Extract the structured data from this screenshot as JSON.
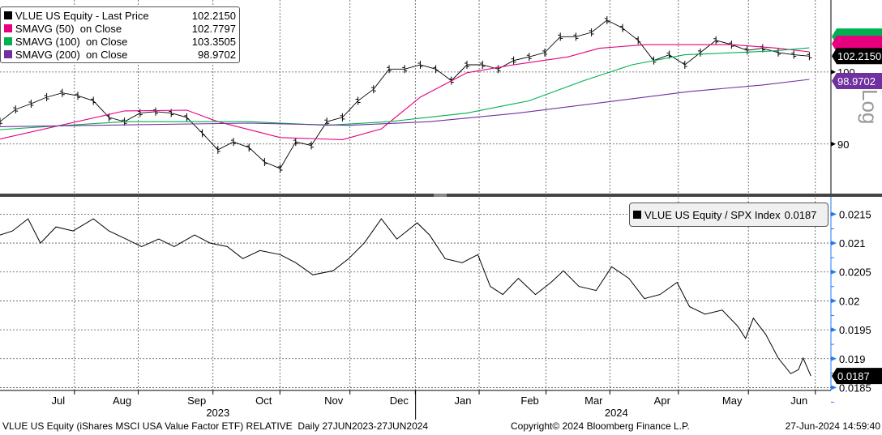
{
  "legend_top": [
    {
      "name": "VLUE US Equity - Last Price",
      "value": "102.2150",
      "color": "#000000"
    },
    {
      "name": "SMAVG (50)  on Close",
      "value": "102.7797",
      "color": "#e6007e"
    },
    {
      "name": "SMAVG (100)  on Close",
      "value": "103.3505",
      "color": "#00b050"
    },
    {
      "name": "SMAVG (200)  on Close",
      "value": "98.9702",
      "color": "#7030a0"
    }
  ],
  "legend_bottom": {
    "name": "VLUE US Equity / SPX Index",
    "value": "0.0187"
  },
  "tags": {
    "price": "102.2150",
    "sma200": "98.9702",
    "ratio": "0.0187",
    "log": "Log"
  },
  "footer": {
    "left": "VLUE US Equity (iShares MSCI USA Value Factor ETF) RELATIVE  Daily 27JUN2023-27JUN2024",
    "center": "Copyright© 2024 Bloomberg Finance L.P.",
    "right": "27-Jun-2024 14:59:40"
  },
  "chart_data": [
    {
      "type": "line",
      "title": "VLUE US Equity - Last Price",
      "ylim": [
        83,
        110
      ],
      "y_ticks": [
        "90",
        "100"
      ],
      "y_tick_values": [
        90,
        100
      ],
      "x_unit": "weeks since 27JUN2023",
      "series": [
        {
          "name": "VLUE US Equity - Last Price",
          "color": "#000000",
          "points": [
            [
              0,
              93.1
            ],
            [
              1,
              94.8
            ],
            [
              2,
              95.6
            ],
            [
              3,
              96.5
            ],
            [
              4,
              97.1
            ],
            [
              5,
              96.7
            ],
            [
              6,
              96.0
            ],
            [
              7,
              93.7
            ],
            [
              8,
              93.1
            ],
            [
              9,
              94.3
            ],
            [
              10,
              94.5
            ],
            [
              11,
              94.3
            ],
            [
              12,
              93.7
            ],
            [
              13,
              91.5
            ],
            [
              14,
              89.2
            ],
            [
              15,
              90.3
            ],
            [
              16,
              89.5
            ],
            [
              17,
              87.5
            ],
            [
              18,
              86.6
            ],
            [
              19,
              90.3
            ],
            [
              20,
              89.8
            ],
            [
              21,
              93.1
            ],
            [
              22,
              93.7
            ],
            [
              23,
              96.0
            ],
            [
              24,
              97.6
            ],
            [
              25,
              100.4
            ],
            [
              26,
              100.4
            ],
            [
              27,
              101.0
            ],
            [
              28,
              100.4
            ],
            [
              29,
              98.8
            ],
            [
              30,
              101.0
            ],
            [
              31,
              101.0
            ],
            [
              32,
              100.4
            ],
            [
              33,
              101.6
            ],
            [
              34,
              102.1
            ],
            [
              35,
              102.7
            ],
            [
              36,
              104.9
            ],
            [
              37,
              104.9
            ],
            [
              38,
              105.5
            ],
            [
              39,
              107.2
            ],
            [
              40,
              106.1
            ],
            [
              41,
              104.4
            ],
            [
              42,
              101.6
            ],
            [
              43,
              102.4
            ],
            [
              44,
              101.0
            ],
            [
              45,
              102.7
            ],
            [
              46,
              104.4
            ],
            [
              47,
              103.8
            ],
            [
              48,
              103.0
            ],
            [
              49,
              103.3
            ],
            [
              50,
              102.7
            ],
            [
              51,
              102.4
            ],
            [
              52,
              102.2
            ]
          ]
        },
        {
          "name": "SMAVG (50)",
          "color": "#e6007e",
          "points": [
            [
              0,
              90.7
            ],
            [
              8,
              94.6
            ],
            [
              12,
              94.7
            ],
            [
              14,
              93.1
            ],
            [
              18,
              90.9
            ],
            [
              22,
              90.6
            ],
            [
              24.5,
              92.1
            ],
            [
              27,
              96.5
            ],
            [
              30,
              99.9
            ],
            [
              33,
              101.0
            ],
            [
              36.5,
              102.1
            ],
            [
              38.5,
              103.3
            ],
            [
              41.5,
              103.8
            ],
            [
              47,
              103.8
            ],
            [
              50,
              103.3
            ],
            [
              52,
              102.8
            ]
          ]
        },
        {
          "name": "SMAVG (100)",
          "color": "#00b050",
          "points": [
            [
              0,
              92.0
            ],
            [
              8,
              93.1
            ],
            [
              16,
              93.1
            ],
            [
              21,
              92.6
            ],
            [
              25,
              93.1
            ],
            [
              30,
              94.3
            ],
            [
              34,
              96.0
            ],
            [
              37.5,
              98.8
            ],
            [
              40.6,
              101.0
            ],
            [
              44,
              102.4
            ],
            [
              49.5,
              102.9
            ],
            [
              52,
              103.35
            ]
          ]
        },
        {
          "name": "SMAVG (200)",
          "color": "#7030a0",
          "points": [
            [
              0,
              92.4
            ],
            [
              16,
              92.9
            ],
            [
              22.4,
              92.6
            ],
            [
              27.6,
              93.1
            ],
            [
              33.3,
              94.3
            ],
            [
              39.6,
              96.0
            ],
            [
              44.3,
              97.3
            ],
            [
              49,
              98.2
            ],
            [
              52,
              98.97
            ]
          ]
        }
      ]
    },
    {
      "type": "line",
      "title": "VLUE US Equity / SPX Index",
      "ylim": [
        0.01845,
        0.0218
      ],
      "y_ticks": [
        "0.0215",
        "0.021",
        "0.0205",
        "0.02",
        "0.0195",
        "0.019",
        "0.0185"
      ],
      "y_tick_values": [
        0.0215,
        0.021,
        0.0205,
        0.02,
        0.0195,
        0.019,
        0.0185
      ],
      "series": [
        {
          "name": "VLUE US Equity / SPX Index",
          "color": "#000000",
          "points": [
            [
              0,
              0.02114
            ],
            [
              0.8,
              0.02121
            ],
            [
              1.8,
              0.02142
            ],
            [
              2.6,
              0.021
            ],
            [
              3.6,
              0.02128
            ],
            [
              4.7,
              0.02121
            ],
            [
              6,
              0.02142
            ],
            [
              7,
              0.02121
            ],
            [
              8.1,
              0.02107
            ],
            [
              9.1,
              0.02094
            ],
            [
              10.2,
              0.02107
            ],
            [
              11.2,
              0.02094
            ],
            [
              12.5,
              0.02114
            ],
            [
              13.5,
              0.021
            ],
            [
              14.6,
              0.02094
            ],
            [
              15.6,
              0.02073
            ],
            [
              16.7,
              0.02087
            ],
            [
              18,
              0.0208
            ],
            [
              19,
              0.02066
            ],
            [
              20.1,
              0.02045
            ],
            [
              21.4,
              0.02052
            ],
            [
              22.4,
              0.02073
            ],
            [
              23.4,
              0.021
            ],
            [
              24.5,
              0.02142
            ],
            [
              25.5,
              0.02107
            ],
            [
              26.8,
              0.02135
            ],
            [
              27.6,
              0.02114
            ],
            [
              28.6,
              0.02073
            ],
            [
              29.7,
              0.02066
            ],
            [
              30.7,
              0.0208
            ],
            [
              31.5,
              0.02025
            ],
            [
              32.3,
              0.02011
            ],
            [
              33.3,
              0.02039
            ],
            [
              34.4,
              0.02011
            ],
            [
              35.4,
              0.02032
            ],
            [
              36.2,
              0.02052
            ],
            [
              37.2,
              0.02025
            ],
            [
              38.3,
              0.02018
            ],
            [
              39.3,
              0.02059
            ],
            [
              40.4,
              0.02039
            ],
            [
              41.4,
              0.02004
            ],
            [
              42.4,
              0.02011
            ],
            [
              43.5,
              0.02032
            ],
            [
              44.3,
              0.0199
            ],
            [
              45.3,
              0.01977
            ],
            [
              46.4,
              0.01984
            ],
            [
              47.4,
              0.01956
            ],
            [
              47.9,
              0.01935
            ],
            [
              48.4,
              0.0197
            ],
            [
              49.2,
              0.01942
            ],
            [
              50,
              0.01901
            ],
            [
              50.8,
              0.01874
            ],
            [
              51.3,
              0.01881
            ],
            [
              51.6,
              0.01901
            ],
            [
              52.1,
              0.0187
            ]
          ]
        }
      ]
    },
    {
      "x_axis": {
        "months": [
          "Jul",
          "Aug",
          "Sep",
          "Oct",
          "Nov",
          "Dec",
          "Jan",
          "Feb",
          "Mar",
          "Apr",
          "May",
          "Jun"
        ],
        "month_weeks": [
          2.7,
          6.8,
          11.6,
          15.9,
          20.4,
          24.6,
          28.7,
          33,
          37.1,
          41.5,
          46,
          50.3
        ],
        "years": [
          "2023",
          "2024"
        ],
        "year_weeks": [
          14,
          39.6
        ],
        "year_boundary_week": 26.7
      }
    }
  ]
}
